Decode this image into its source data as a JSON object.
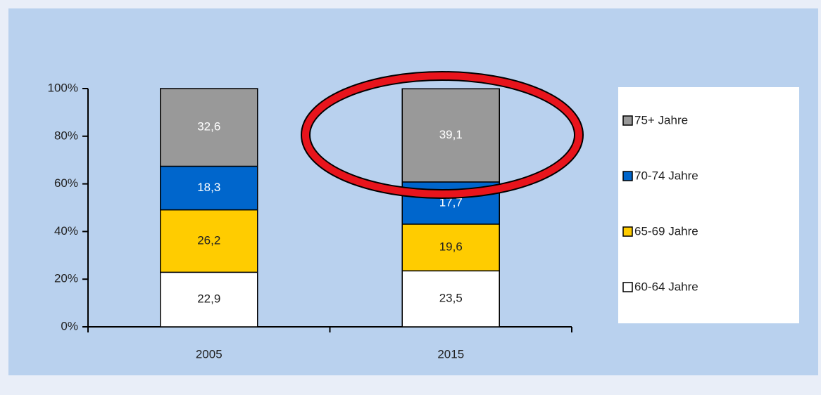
{
  "chart_data": {
    "type": "bar",
    "stacked": true,
    "categories": [
      "2005",
      "2015"
    ],
    "series": [
      {
        "name": "60-64 Jahre",
        "color": "#ffffff",
        "values": [
          22.9,
          23.5
        ],
        "value_labels": [
          "22,9",
          "23,5"
        ]
      },
      {
        "name": "65-69 Jahre",
        "color": "#ffcc00",
        "values": [
          26.2,
          19.6
        ],
        "value_labels": [
          "26,2",
          "19,6"
        ]
      },
      {
        "name": "70-74 Jahre",
        "color": "#0066cc",
        "values": [
          18.3,
          17.7
        ],
        "value_labels": [
          "18,3",
          "17,7"
        ]
      },
      {
        "name": "75+ Jahre",
        "color": "#999999",
        "values": [
          32.6,
          39.1
        ],
        "value_labels": [
          "32,6",
          "39,1"
        ]
      }
    ],
    "ylim": [
      0,
      100
    ],
    "yticks": [
      {
        "value": 0,
        "label": "0%"
      },
      {
        "value": 20,
        "label": "20%"
      },
      {
        "value": 40,
        "label": "40%"
      },
      {
        "value": 60,
        "label": "60%"
      },
      {
        "value": 80,
        "label": "80%"
      },
      {
        "value": 100,
        "label": "100%"
      }
    ],
    "grid": false,
    "legend": "right"
  }
}
